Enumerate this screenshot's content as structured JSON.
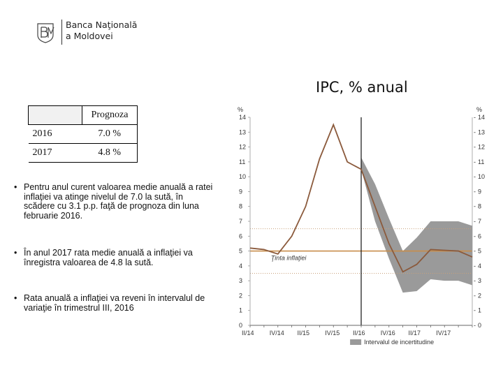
{
  "header": {
    "bank_name_line1": "Banca Naţională",
    "bank_name_line2": "a Moldovei",
    "logo_icon": "bnm-monogram-icon"
  },
  "forecast_table": {
    "header": [
      "",
      "Prognoza"
    ],
    "rows": [
      {
        "year": "2016",
        "value": "7.0 %"
      },
      {
        "year": "2017",
        "value": "4.8 %"
      }
    ]
  },
  "bullets": [
    "Pentru anul curent valoarea medie anuală a ratei inflaţiei va atinge nivelul de 7.0 la sută, în scădere cu 3.1 p.p. faţă de prognoza din luna februarie 2016.",
    "În anul 2017 rata medie anuală a inflaţiei va înregistra valoarea de 4.8 la sută.",
    "Rata anuală a inflaţiei va reveni în intervalul de variaţie în trimestrul III, 2016"
  ],
  "colors": {
    "line": "#8b5a3c",
    "target": "#c88d4a",
    "band": "#9a9a9a",
    "range": "#c8a07a"
  },
  "chart_data": {
    "type": "line",
    "title": "IPC, % anual",
    "ylabel_left": "%",
    "ylabel_right": "%",
    "ylim": [
      0,
      14
    ],
    "yticks": [
      0,
      1,
      2,
      3,
      4,
      5,
      6,
      7,
      8,
      9,
      10,
      11,
      12,
      13,
      14
    ],
    "x_tick_labels": [
      "II/14",
      "IV/14",
      "II/15",
      "IV/15",
      "II/16",
      "IV/16",
      "II/17",
      "IV/17"
    ],
    "series": [
      {
        "name": "IPC",
        "x": [
          0,
          1,
          2,
          3,
          4,
          5,
          6,
          7,
          8,
          9,
          10,
          11,
          12,
          13,
          14,
          15,
          16
        ],
        "values": [
          5.2,
          5.1,
          4.8,
          6.0,
          8.0,
          11.2,
          13.5,
          11.0,
          10.5,
          8.0,
          5.5,
          3.6,
          4.1,
          5.1,
          5.05,
          5.0,
          4.6
        ]
      }
    ],
    "uncertainty_band": {
      "x": [
        8,
        9,
        10,
        11,
        12,
        13,
        14,
        15,
        16
      ],
      "upper": [
        11.3,
        9.5,
        7.2,
        5.0,
        5.9,
        7.0,
        7.0,
        7.0,
        6.7
      ],
      "lower": [
        10.5,
        7.0,
        4.5,
        2.2,
        2.3,
        3.1,
        3.0,
        3.0,
        2.7
      ]
    },
    "forecast_start_x": 8.0,
    "inflation_target": {
      "value": 5.0,
      "label": "Ţinta inflaţiei"
    },
    "variation_range": {
      "upper": 6.5,
      "lower": 3.5
    },
    "legend": {
      "label": "Intervalul de incertitudine"
    }
  }
}
